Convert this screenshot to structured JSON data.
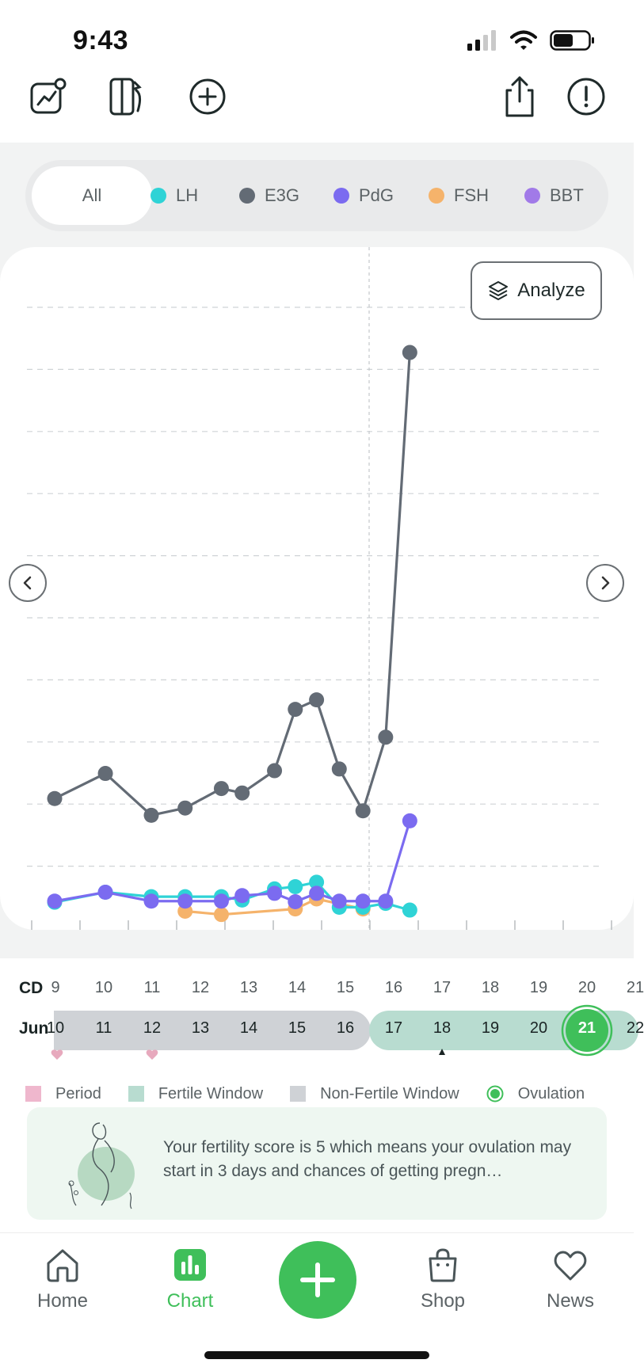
{
  "status": {
    "time": "9:43"
  },
  "filters": {
    "all": "All",
    "items": [
      {
        "label": "LH",
        "color": "#2fd3d6"
      },
      {
        "label": "E3G",
        "color": "#636b75"
      },
      {
        "label": "PdG",
        "color": "#7b6bf0"
      },
      {
        "label": "FSH",
        "color": "#f5b36b"
      },
      {
        "label": "BBT",
        "color": "#a17ae8"
      }
    ]
  },
  "analyze": {
    "label": "Analyze"
  },
  "chart_data": {
    "type": "line",
    "x": [
      10,
      11,
      12,
      13,
      14,
      15,
      16,
      17
    ],
    "series": [
      {
        "name": "E3G",
        "color": "#636b75",
        "points": [
          [
            9.0,
            190
          ],
          [
            10.05,
            235
          ],
          [
            11.0,
            160
          ],
          [
            11.7,
            173
          ],
          [
            12.45,
            208
          ],
          [
            12.88,
            200
          ],
          [
            13.55,
            240
          ],
          [
            13.98,
            350
          ],
          [
            14.42,
            367
          ],
          [
            14.89,
            243
          ],
          [
            15.38,
            168
          ],
          [
            15.85,
            300
          ],
          [
            16.35,
            990
          ]
        ]
      },
      {
        "name": "LH",
        "color": "#2fd3d6",
        "points": [
          [
            9.0,
            4
          ],
          [
            10.05,
            22
          ],
          [
            11.0,
            14
          ],
          [
            11.7,
            14
          ],
          [
            12.45,
            14
          ],
          [
            12.88,
            8
          ],
          [
            13.55,
            28
          ],
          [
            13.98,
            32
          ],
          [
            14.42,
            40
          ],
          [
            14.89,
            -5
          ],
          [
            15.38,
            -5
          ],
          [
            15.85,
            2
          ],
          [
            16.35,
            -10
          ]
        ]
      },
      {
        "name": "PdG",
        "color": "#7b6bf0",
        "points": [
          [
            9.0,
            6
          ],
          [
            10.05,
            22
          ],
          [
            11.0,
            6
          ],
          [
            11.7,
            6
          ],
          [
            12.45,
            6
          ],
          [
            12.88,
            16
          ],
          [
            13.55,
            20
          ],
          [
            13.98,
            5
          ],
          [
            14.42,
            20
          ],
          [
            14.89,
            6
          ],
          [
            15.38,
            6
          ],
          [
            15.85,
            6
          ],
          [
            16.35,
            150
          ]
        ]
      },
      {
        "name": "FSH",
        "color": "#f5b36b",
        "points": [
          [
            11.7,
            -12
          ],
          [
            12.45,
            -18
          ],
          [
            13.98,
            -8
          ],
          [
            14.42,
            10
          ],
          [
            15.38,
            -8
          ]
        ]
      }
    ]
  },
  "timeline": {
    "cd_label": "CD",
    "month_label": "Jun",
    "cycle_days": [
      "9",
      "10",
      "11",
      "12",
      "13",
      "14",
      "15",
      "16",
      "17",
      "18",
      "19",
      "20",
      "21"
    ],
    "dates": [
      "10",
      "11",
      "12",
      "13",
      "14",
      "15",
      "16",
      "17",
      "18",
      "19",
      "20",
      "21",
      "22"
    ],
    "ovulation_date": "21",
    "today_date": "18"
  },
  "legend": {
    "period": "Period",
    "fertile": "Fertile Window",
    "nonfertile": "Non-Fertile Window",
    "ovulation": "Ovulation"
  },
  "score": {
    "text": "Your fertility score is 5 which means your ovulation may start in 3 days and chances of getting pregn…"
  },
  "nav": {
    "home": "Home",
    "chart": "Chart",
    "shop": "Shop",
    "news": "News"
  }
}
